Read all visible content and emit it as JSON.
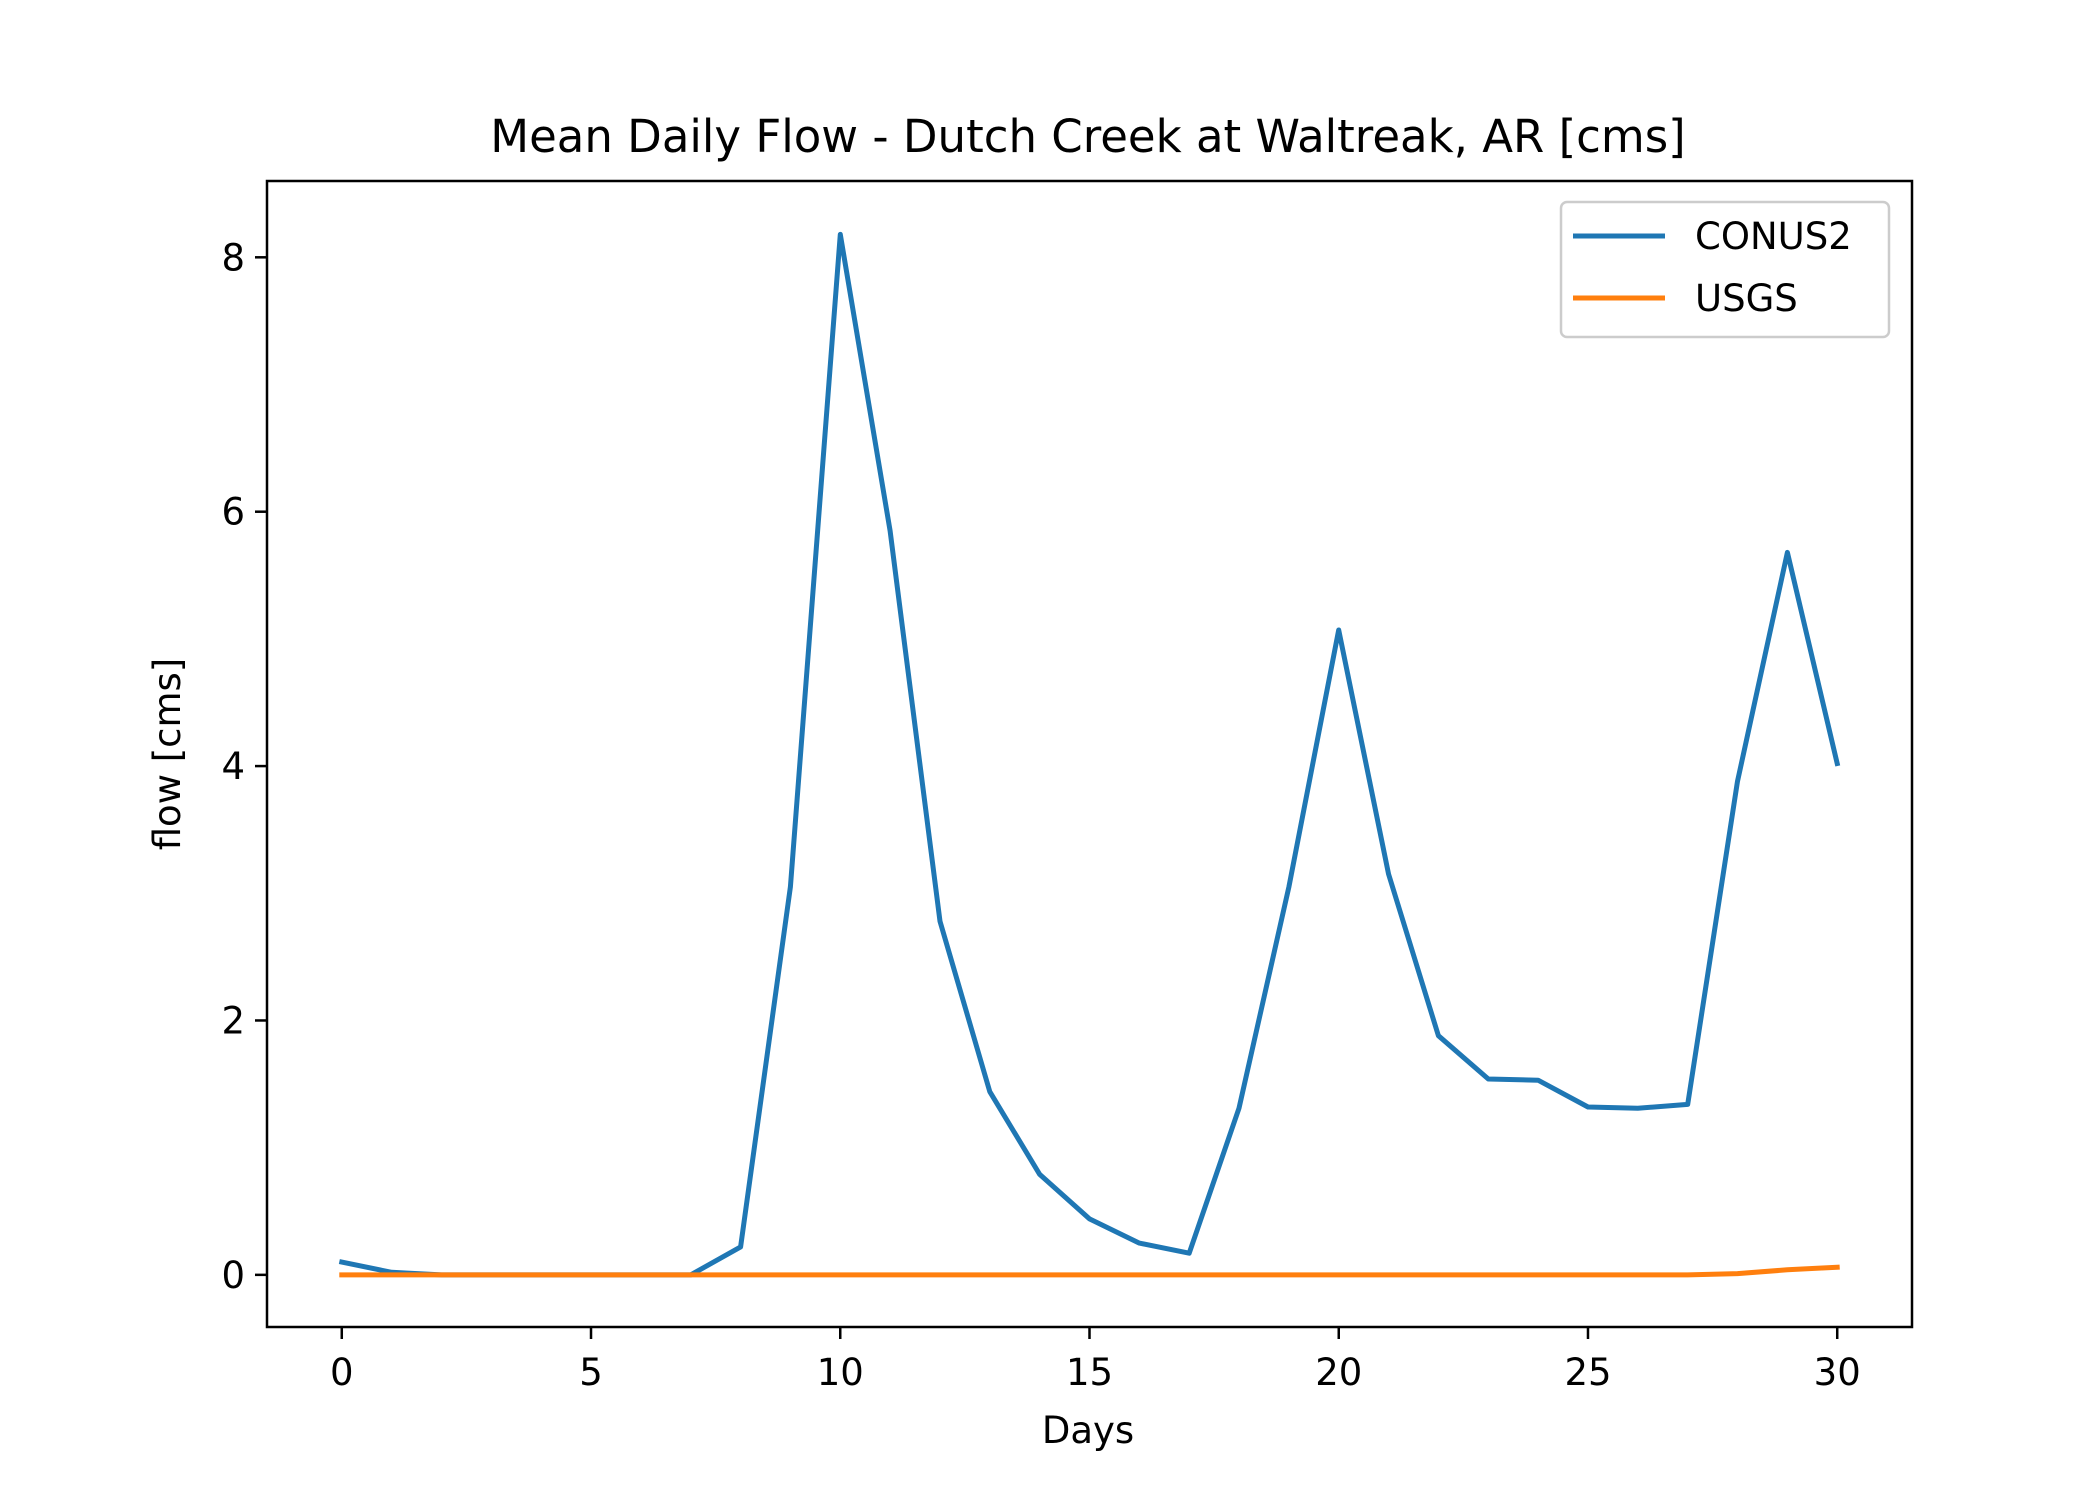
{
  "chart_data": {
    "type": "line",
    "title": "Mean Daily Flow - Dutch Creek at Waltreak, AR [cms]",
    "xlabel": "Days",
    "ylabel": "flow [cms]",
    "xlim": [
      -1.5,
      31.5
    ],
    "ylim": [
      -0.41,
      8.6
    ],
    "x_ticks": [
      0,
      5,
      10,
      15,
      20,
      25,
      30
    ],
    "y_ticks": [
      0,
      2,
      4,
      6,
      8
    ],
    "grid": false,
    "legend_position": "top-right",
    "x": [
      0,
      1,
      2,
      3,
      4,
      5,
      6,
      7,
      8,
      9,
      10,
      11,
      12,
      13,
      14,
      15,
      16,
      17,
      18,
      19,
      20,
      21,
      22,
      23,
      24,
      25,
      26,
      27,
      28,
      29,
      30
    ],
    "series": [
      {
        "name": "CONUS2",
        "color": "#1f77b4",
        "values": [
          0.1,
          0.02,
          0.0,
          0.0,
          0.0,
          0.0,
          0.0,
          0.0,
          0.22,
          3.05,
          8.18,
          5.85,
          2.78,
          1.44,
          0.79,
          0.44,
          0.25,
          0.17,
          1.31,
          3.05,
          5.07,
          3.15,
          1.88,
          1.54,
          1.53,
          1.32,
          1.31,
          1.34,
          3.88,
          5.68,
          4.02
        ]
      },
      {
        "name": "USGS",
        "color": "#ff7f0e",
        "values": [
          0.0,
          0.0,
          0.0,
          0.0,
          0.0,
          0.0,
          0.0,
          0.0,
          0.0,
          0.0,
          0.0,
          0.0,
          0.0,
          0.0,
          0.0,
          0.0,
          0.0,
          0.0,
          0.0,
          0.0,
          0.0,
          0.0,
          0.0,
          0.0,
          0.0,
          0.0,
          0.0,
          0.0,
          0.01,
          0.04,
          0.06
        ]
      }
    ]
  }
}
